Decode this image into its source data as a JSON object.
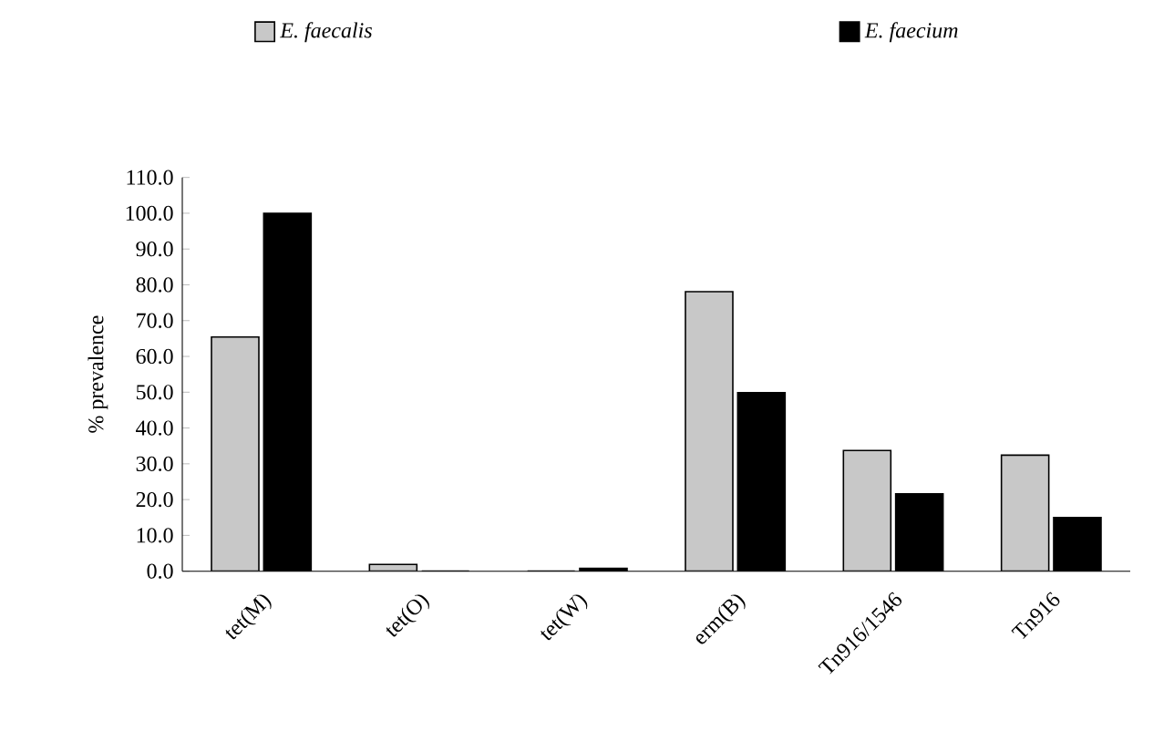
{
  "chart_data": {
    "type": "bar",
    "ylabel": "% prevalence",
    "categories": [
      "tet(M)",
      "tet(O)",
      "tet(W)",
      "erm(B)",
      "Tn916/1546",
      "Tn916"
    ],
    "series": [
      {
        "name": "E. faecalis",
        "color": "#c8c8c8",
        "values": [
          65.4,
          1.9,
          0,
          78.1,
          33.7,
          32.4
        ]
      },
      {
        "name": "E. faecium",
        "color": "#000000",
        "values": [
          100,
          0,
          0.8,
          49.9,
          21.6,
          15.0
        ]
      }
    ],
    "ylim": [
      0,
      110
    ],
    "yticks": [
      {
        "value": 0,
        "label": "0.0"
      },
      {
        "value": 10,
        "label": "10.0"
      },
      {
        "value": 20,
        "label": "20.0"
      },
      {
        "value": 30,
        "label": "30.0"
      },
      {
        "value": 40,
        "label": "40.0"
      },
      {
        "value": 50,
        "label": "50.0"
      },
      {
        "value": 60,
        "label": "60.0"
      },
      {
        "value": 70,
        "label": "70.0"
      },
      {
        "value": 80,
        "label": "80.0"
      },
      {
        "value": 90,
        "label": "90.0"
      },
      {
        "value": 100,
        "label": "100.0"
      },
      {
        "value": 110,
        "label": "110.0"
      }
    ],
    "legend": "top",
    "grid": false
  }
}
